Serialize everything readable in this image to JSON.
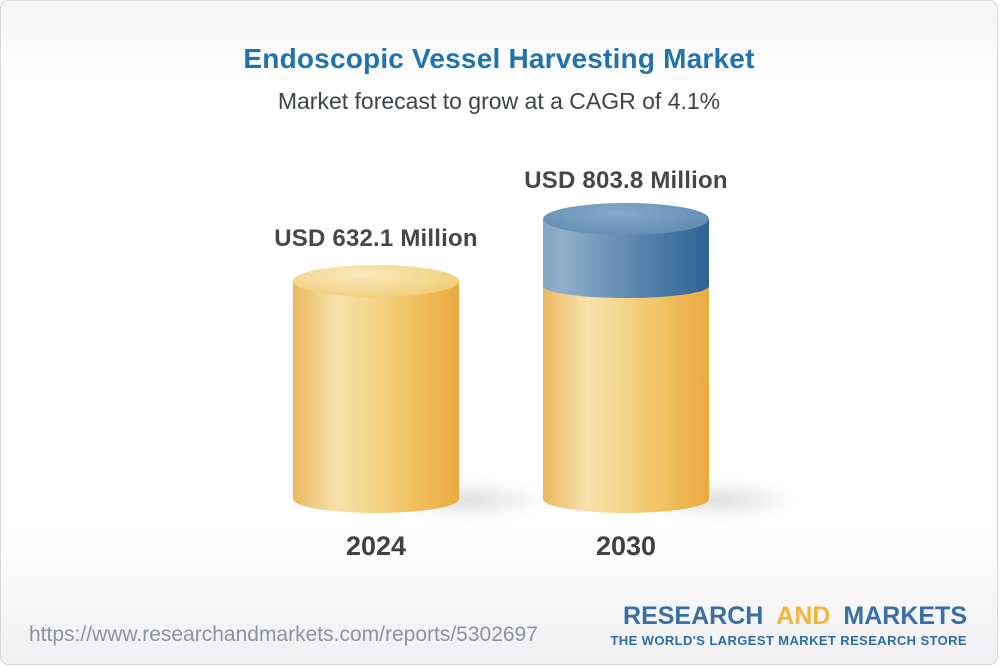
{
  "header": {
    "title": "Endoscopic Vessel Harvesting Market",
    "subtitle": "Market forecast to grow at a CAGR of 4.1%"
  },
  "chart_data": {
    "type": "bar",
    "categories": [
      "2024",
      "2030"
    ],
    "values": [
      632.1,
      803.8
    ],
    "value_labels": [
      "USD 632.1 Million",
      "USD 803.8 Million"
    ],
    "unit": "USD Million",
    "cagr_percent": 4.1,
    "title": "Endoscopic Vessel Harvesting Market",
    "subtitle": "Market forecast to grow at a CAGR of 4.1%",
    "legend_position": "none",
    "grid": false,
    "colors": {
      "bar_base": "#F0C463",
      "growth_segment": "#4D7BA5",
      "title_text": "#2173AE",
      "label_text": "#45484B"
    }
  },
  "footer": {
    "url": "https://www.researchandmarkets.com/reports/5302697",
    "logo": {
      "word1": "RESEARCH",
      "word2": "AND",
      "word3": "MARKETS",
      "tagline": "THE WORLD'S LARGEST MARKET RESEARCH STORE"
    }
  }
}
